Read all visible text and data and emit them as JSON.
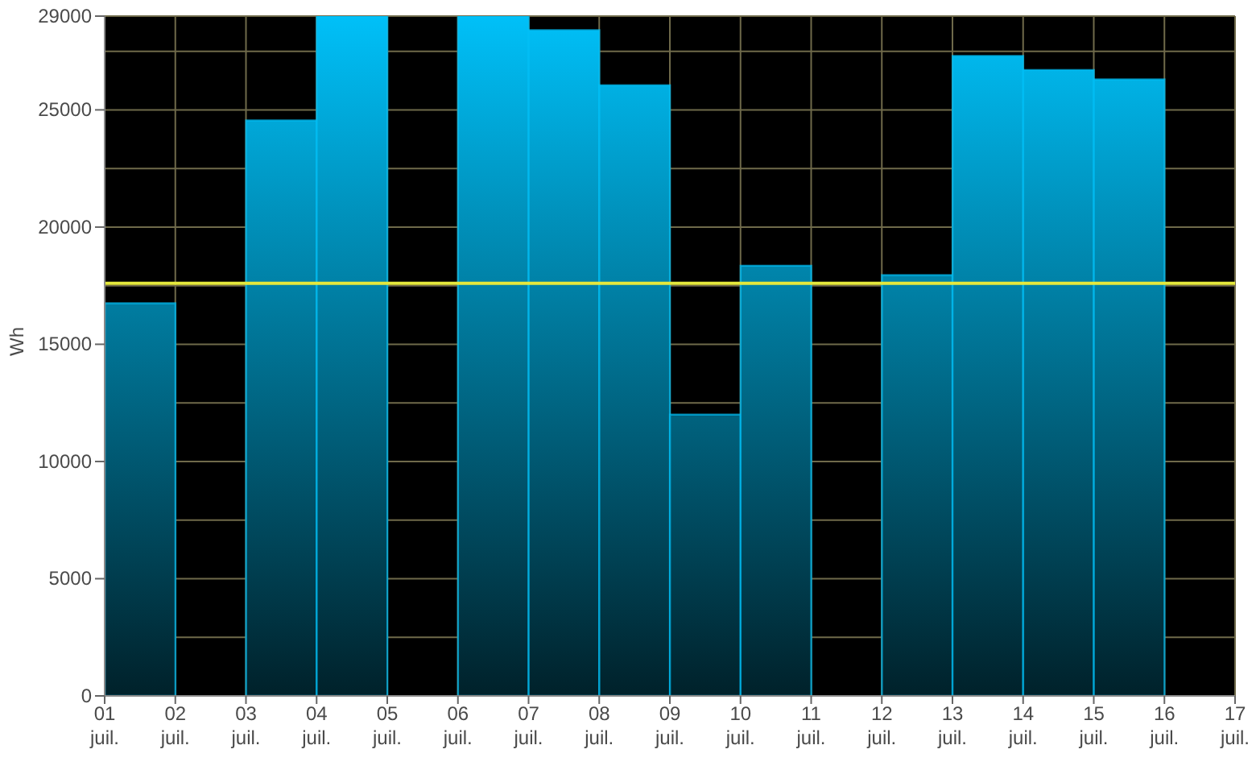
{
  "chart_data": {
    "type": "bar",
    "ylabel": "Wh",
    "x": [
      "--07-01T12:00",
      "--07-02T12:00",
      "--07-03T12:00",
      "--07-04T12:00",
      "--07-05T12:00",
      "--07-06T12:00",
      "--07-07T12:00",
      "--07-08T12:00",
      "--07-09T12:00",
      "--07-10T12:00",
      "--07-11T12:00",
      "--07-12T12:00",
      "--07-13T12:00",
      "--07-14T12:00",
      "--07-15T12:00"
    ],
    "values": [
      16750,
      null,
      24550,
      29000,
      null,
      29000,
      28400,
      26050,
      12000,
      18350,
      null,
      17950,
      27300,
      26700,
      26300
    ],
    "color": "#00c0f8",
    "xlim": [
      "--07-01",
      "--07-17"
    ],
    "xticks": [
      {
        "value": "--07-01",
        "label": "01 juil."
      },
      {
        "value": "--07-02",
        "label": "02 juil."
      },
      {
        "value": "--07-03",
        "label": "03 juil."
      },
      {
        "value": "--07-04",
        "label": "04 juil."
      },
      {
        "value": "--07-05",
        "label": "05 juil."
      },
      {
        "value": "--07-06",
        "label": "06 juil."
      },
      {
        "value": "--07-07",
        "label": "07 juil."
      },
      {
        "value": "--07-08",
        "label": "08 juil."
      },
      {
        "value": "--07-09",
        "label": "09 juil."
      },
      {
        "value": "--07-10",
        "label": "10 juil."
      },
      {
        "value": "--07-11",
        "label": "11 juil."
      },
      {
        "value": "--07-12",
        "label": "12 juil."
      },
      {
        "value": "--07-13",
        "label": "13 juil."
      },
      {
        "value": "--07-14",
        "label": "14 juil."
      },
      {
        "value": "--07-15",
        "label": "15 juil."
      },
      {
        "value": "--07-16",
        "label": "16 juil."
      },
      {
        "value": "--07-17",
        "label": "17 juil."
      }
    ],
    "ylim": [
      0,
      29000
    ],
    "yticks": [
      0,
      {
        "value": 2500,
        "label": null
      },
      5000,
      {
        "value": 7500,
        "label": null
      },
      10000,
      {
        "value": 12500,
        "label": null
      },
      15000,
      {
        "value": 17500,
        "label": null
      },
      20000,
      {
        "value": 22500,
        "label": null
      },
      25000,
      {
        "value": 27500,
        "label": null
      },
      29000
    ],
    "grid": true,
    "ref_lines": [
      {
        "axis": "y",
        "value": 17600,
        "color": "#e4e83c"
      }
    ]
  }
}
